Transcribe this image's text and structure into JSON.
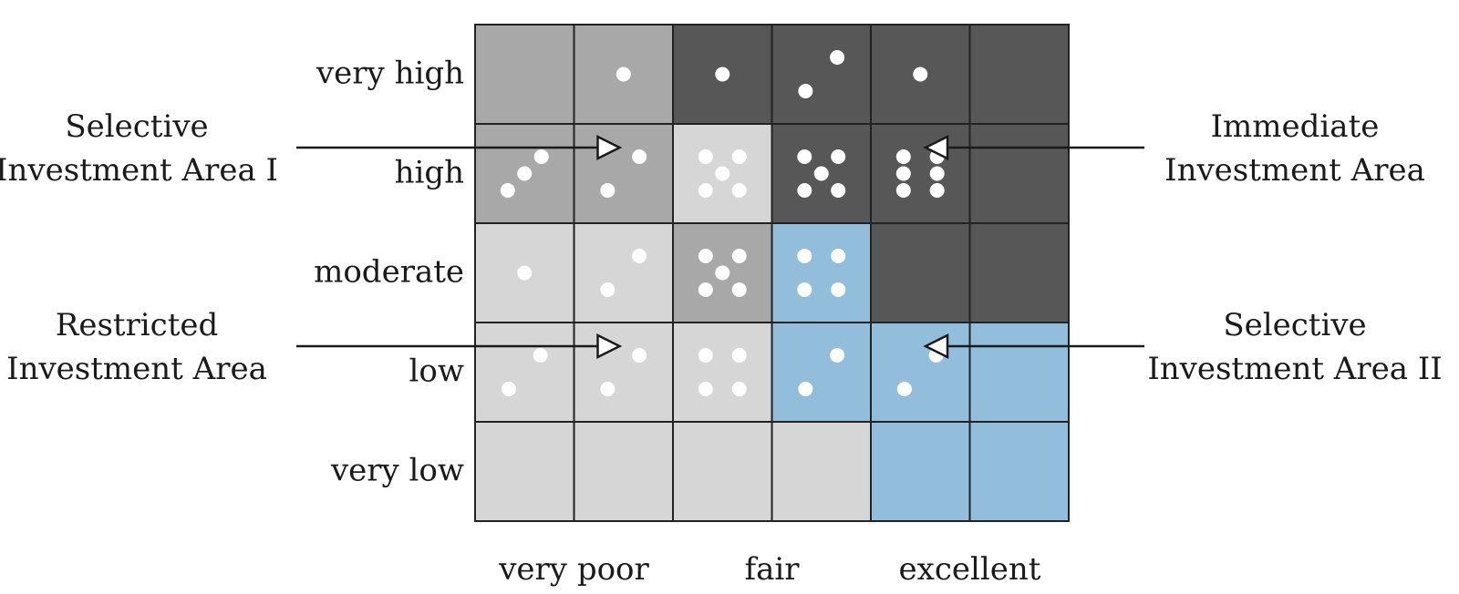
{
  "colors": {
    "dark": "#575757",
    "mid": "#a8a8a8",
    "light": "#d6d6d6",
    "blue": "#92bedc",
    "grid_line": "#222222",
    "pip": "#ffffff",
    "text": "#1a1a1a"
  },
  "rows": [
    "very high",
    "high",
    "moderate",
    "low",
    "very low"
  ],
  "columns": [
    "very poor",
    "fair",
    "excellent"
  ],
  "grid": [
    [
      {
        "fill": "mid",
        "pips": 0
      },
      {
        "fill": "mid",
        "pips": 1
      },
      {
        "fill": "dark",
        "pips": 1
      },
      {
        "fill": "dark",
        "pips": 2
      },
      {
        "fill": "dark",
        "pips": 1
      },
      {
        "fill": "dark",
        "pips": 0
      }
    ],
    [
      {
        "fill": "mid",
        "pips": 3
      },
      {
        "fill": "mid",
        "pips": 2
      },
      {
        "fill": "light",
        "pips": 5
      },
      {
        "fill": "dark",
        "pips": 5
      },
      {
        "fill": "dark",
        "pips": 6
      },
      {
        "fill": "dark",
        "pips": 0
      }
    ],
    [
      {
        "fill": "light",
        "pips": 1
      },
      {
        "fill": "light",
        "pips": 2
      },
      {
        "fill": "mid",
        "pips": 5
      },
      {
        "fill": "blue",
        "pips": 4
      },
      {
        "fill": "dark",
        "pips": 0
      },
      {
        "fill": "dark",
        "pips": 0
      }
    ],
    [
      {
        "fill": "light",
        "pips": 2
      },
      {
        "fill": "light",
        "pips": 2
      },
      {
        "fill": "light",
        "pips": 4
      },
      {
        "fill": "blue",
        "pips": 2
      },
      {
        "fill": "blue",
        "pips": 2
      },
      {
        "fill": "blue",
        "pips": 0
      }
    ],
    [
      {
        "fill": "light",
        "pips": 0
      },
      {
        "fill": "light",
        "pips": 0
      },
      {
        "fill": "light",
        "pips": 0
      },
      {
        "fill": "light",
        "pips": 0
      },
      {
        "fill": "blue",
        "pips": 0
      },
      {
        "fill": "blue",
        "pips": 0
      }
    ]
  ],
  "annotations": [
    {
      "id": "selective-investment-area-1",
      "lines": [
        "Selective",
        "Investment Area I"
      ],
      "row": 1,
      "col": 1,
      "side": "left"
    },
    {
      "id": "restricted-investment-area",
      "lines": [
        "Restricted",
        "Investment Area"
      ],
      "row": 3,
      "col": 1,
      "side": "left"
    },
    {
      "id": "immediate-investment-area",
      "lines": [
        "Immediate",
        "Investment Area"
      ],
      "row": 1,
      "col": 4,
      "side": "right"
    },
    {
      "id": "selective-investment-area-2",
      "lines": [
        "Selective",
        "Investment Area II"
      ],
      "row": 3,
      "col": 4,
      "side": "right"
    }
  ]
}
